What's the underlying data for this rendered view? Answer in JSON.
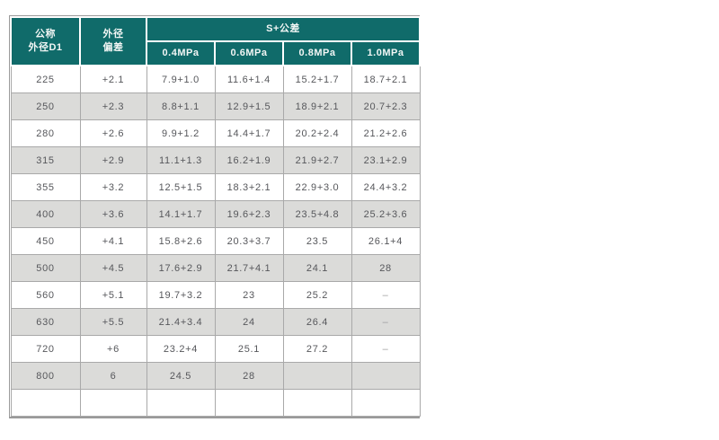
{
  "chart_data": {
    "type": "table",
    "title": "",
    "column_group_header": "S+公差",
    "columns": [
      "公称外径D1",
      "外径偏差",
      "0.4MPa",
      "0.6MPa",
      "0.8MPa",
      "1.0MPa"
    ],
    "rows": [
      [
        "225",
        "+2.1",
        "7.9+1.0",
        "11.6+1.4",
        "15.2+1.7",
        "18.7+2.1"
      ],
      [
        "250",
        "+2.3",
        "8.8+1.1",
        "12.9+1.5",
        "18.9+2.1",
        "20.7+2.3"
      ],
      [
        "280",
        "+2.6",
        "9.9+1.2",
        "14.4+1.7",
        "20.2+2.4",
        "21.2+2.6"
      ],
      [
        "315",
        "+2.9",
        "11.1+1.3",
        "16.2+1.9",
        "21.9+2.7",
        "23.1+2.9"
      ],
      [
        "355",
        "+3.2",
        "12.5+1.5",
        "18.3+2.1",
        "22.9+3.0",
        "24.4+3.2"
      ],
      [
        "400",
        "+3.6",
        "14.1+1.7",
        "19.6+2.3",
        "23.5+4.8",
        "25.2+3.6"
      ],
      [
        "450",
        "+4.1",
        "15.8+2.6",
        "20.3+3.7",
        "23.5",
        "26.1+4"
      ],
      [
        "500",
        "+4.5",
        "17.6+2.9",
        "21.7+4.1",
        "24.1",
        "28"
      ],
      [
        "560",
        "+5.1",
        "19.7+3.2",
        "23",
        "25.2",
        "–"
      ],
      [
        "630",
        "+5.5",
        "21.4+3.4",
        "24",
        "26.4",
        "–"
      ],
      [
        "720",
        "+6",
        "23.2+4",
        "25.1",
        "27.2",
        "–"
      ],
      [
        "800",
        "6",
        "24.5",
        "28",
        "",
        ""
      ],
      [
        "",
        "",
        "",
        "",
        "",
        ""
      ]
    ]
  },
  "header": {
    "col1_line1": "公称",
    "col1_line2": "外径D1",
    "col2_line1": "外径",
    "col2_line2": "偏差",
    "group_label": "S+公差",
    "pressure_labels": [
      "0.4MPa",
      "0.6MPa",
      "0.8MPa",
      "1.0MPa"
    ]
  },
  "colors": {
    "header_bg": "#106b6a",
    "header_text": "#f2f6f5",
    "row_bg": "#ffffff",
    "row_alt": "#dbdbd9",
    "grid": "#a9a9a9",
    "text": "#56575b"
  }
}
